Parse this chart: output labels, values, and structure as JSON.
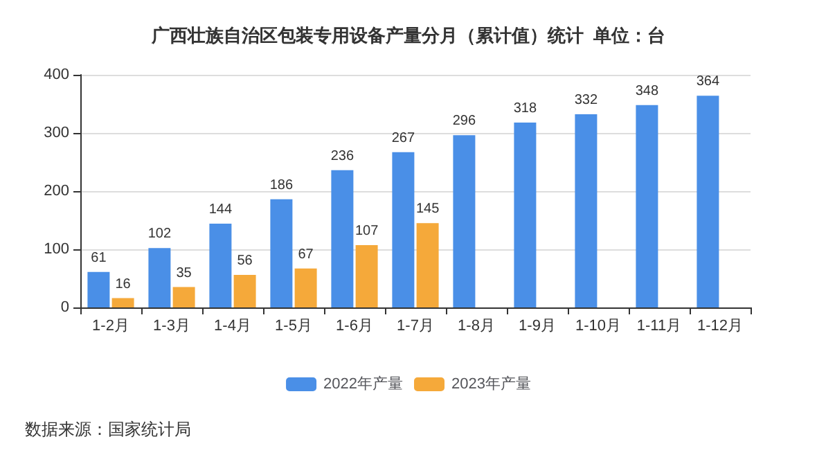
{
  "chart_data": {
    "type": "bar",
    "title": "广西壮族自治区包装专用设备产量分月（累计值）统计  单位：台",
    "categories": [
      "1-2月",
      "1-3月",
      "1-4月",
      "1-5月",
      "1-6月",
      "1-7月",
      "1-8月",
      "1-9月",
      "1-10月",
      "1-11月",
      "1-12月"
    ],
    "series": [
      {
        "name": "2022年产量",
        "color": "#4a8fe7",
        "values": [
          61,
          102,
          144,
          186,
          236,
          267,
          296,
          318,
          332,
          348,
          364
        ]
      },
      {
        "name": "2023年产量",
        "color": "#f5a93a",
        "values": [
          16,
          35,
          56,
          67,
          107,
          145,
          null,
          null,
          null,
          null,
          null
        ]
      }
    ],
    "ylim": [
      0,
      400
    ],
    "yticks": [
      0,
      100,
      200,
      300,
      400
    ],
    "grid": "y",
    "legend": "bottom",
    "data_labels": true,
    "annotations": [
      "数据来源：国家统计局"
    ]
  }
}
